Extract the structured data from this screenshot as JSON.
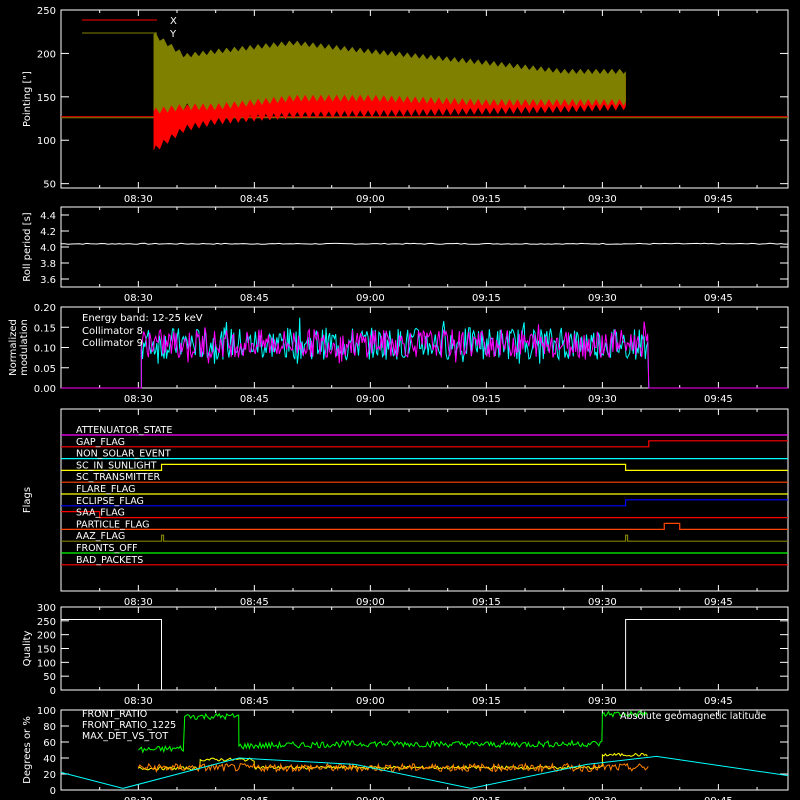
{
  "colors": {
    "bg": "#000000",
    "axis": "#ffffff",
    "red": "#ff0000",
    "olive": "#808000",
    "cyan": "#00ffff",
    "magenta": "#ff00ff",
    "green": "#00ff00",
    "orange": "#ff8000",
    "yellow": "#ffff00",
    "blue": "#0000ff",
    "orangered": "#ff4500",
    "lime": "#00ff40"
  },
  "chart_data": [
    {
      "type": "line",
      "ylabel": "Pointing [\"]",
      "ylim": [
        45,
        250
      ],
      "yticks": [
        "50",
        "100",
        "150",
        "200",
        "250"
      ],
      "xticks": [
        "08:30",
        "08:45",
        "09:00",
        "09:15",
        "09:30",
        "09:45"
      ],
      "legend": [
        "X",
        "Y"
      ],
      "series": [
        {
          "name": "X",
          "color": "#ff0000",
          "t": [
            "08:32",
            "08:36",
            "08:40",
            "08:45",
            "08:50",
            "09:00",
            "09:15",
            "09:25",
            "09:33"
          ],
          "min": [
            85,
            110,
            118,
            122,
            125,
            127,
            130,
            132,
            135
          ],
          "max": [
            150,
            140,
            150,
            162,
            164,
            160,
            160,
            175,
            175
          ]
        },
        {
          "name": "Y",
          "color": "#808000",
          "t": [
            "08:32",
            "08:36",
            "08:40",
            "08:45",
            "08:50",
            "09:00",
            "09:15",
            "09:25",
            "09:33"
          ],
          "min": [
            130,
            135,
            135,
            140,
            145,
            145,
            140,
            140,
            140
          ],
          "max": [
            225,
            200,
            205,
            210,
            215,
            205,
            192,
            182,
            182
          ]
        }
      ],
      "baseline": 127
    },
    {
      "type": "line",
      "ylabel": "Roll period [s]",
      "ylim": [
        3.5,
        4.5
      ],
      "yticks": [
        "3.6",
        "3.8",
        "4.0",
        "4.2",
        "4.4"
      ],
      "xticks": [
        "08:30",
        "08:45",
        "09:00",
        "09:15",
        "09:30",
        "09:45"
      ],
      "series": [
        {
          "name": "",
          "value": 4.04,
          "color": "#ffffff"
        }
      ]
    },
    {
      "type": "line",
      "ylabel": "Normalized modulation",
      "ylim": [
        0,
        0.2
      ],
      "yticks": [
        "0.00",
        "0.05",
        "0.10",
        "0.15",
        "0.20"
      ],
      "xticks": [
        "08:30",
        "08:45",
        "09:00",
        "09:15",
        "09:30",
        "09:45"
      ],
      "annotation": "Energy band: 12-25 keV",
      "series": [
        {
          "name": "Collimator 8",
          "color": "#00ffff",
          "mean": 0.11,
          "spread": 0.04
        },
        {
          "name": "Collimator 9",
          "color": "#ff00ff",
          "mean": 0.11,
          "spread": 0.035
        }
      ],
      "active_range": [
        "08:30",
        "09:36"
      ]
    },
    {
      "type": "line",
      "ylabel": "Flags",
      "flags": [
        {
          "name": "ATTENUATOR_STATE",
          "color": "#ff00ff",
          "steps": []
        },
        {
          "name": "GAP_FLAG",
          "color": "#ff0000",
          "steps": [
            [
              "09:36",
              1
            ]
          ]
        },
        {
          "name": "NON_SOLAR_EVENT",
          "color": "#00ffff",
          "steps": []
        },
        {
          "name": "SC_IN_SUNLIGHT",
          "color": "#ffff00",
          "steps": [
            [
              "08:33",
              1
            ],
            [
              "09:33",
              0
            ]
          ]
        },
        {
          "name": "SC_TRANSMITTER",
          "color": "#ff4500",
          "steps": []
        },
        {
          "name": "FLARE_FLAG",
          "color": "#ffff00",
          "steps": []
        },
        {
          "name": "ECLIPSE_FLAG",
          "color": "#0000ff",
          "steps": [
            [
              "08:33",
              0
            ],
            [
              "09:33",
              1
            ]
          ]
        },
        {
          "name": "SAA_FLAG",
          "color": "#ff0000",
          "steps": [
            [
              "08:25",
              0
            ]
          ],
          "initial": 1
        },
        {
          "name": "PARTICLE_FLAG",
          "color": "#ff4500",
          "steps": [
            [
              "09:38",
              1
            ],
            [
              "09:40",
              0
            ]
          ]
        },
        {
          "name": "AAZ_FLAG",
          "color": "#808000",
          "spikes": [
            "08:33",
            "09:33"
          ]
        },
        {
          "name": "FRONTS_OFF",
          "color": "#00ff00",
          "steps": []
        },
        {
          "name": "BAD_PACKETS",
          "color": "#ff0000",
          "steps": []
        }
      ]
    },
    {
      "type": "line",
      "ylabel": "Quality",
      "ylim": [
        0,
        300
      ],
      "yticks": [
        "0",
        "50",
        "100",
        "150",
        "200",
        "250",
        "300"
      ],
      "xticks": [
        "08:30",
        "08:45",
        "09:00",
        "09:15",
        "09:30",
        "09:45"
      ],
      "series": [
        {
          "name": "",
          "color": "#ffffff",
          "points": [
            [
              "08:20",
              255
            ],
            [
              "08:33",
              255
            ],
            [
              "08:33",
              0
            ],
            [
              "09:33",
              0
            ],
            [
              "09:33",
              255
            ],
            [
              "09:54",
              255
            ]
          ]
        }
      ]
    },
    {
      "type": "line",
      "ylabel": "Degrees or %",
      "ylim": [
        0,
        100
      ],
      "yticks": [
        "0",
        "20",
        "40",
        "60",
        "80",
        "100"
      ],
      "xticks": [
        "08:30",
        "08:45",
        "09:00",
        "09:15",
        "09:30",
        "09:45"
      ],
      "legend_right": "Absolute geomagnetic latitude",
      "series": [
        {
          "name": "FRONT_RATIO",
          "color": "#ffff00",
          "points": [
            [
              "08:30",
              27
            ],
            [
              "08:38",
              27
            ],
            [
              "08:38",
              38
            ],
            [
              "08:45",
              38
            ],
            [
              "08:45",
              28
            ],
            [
              "09:30",
              28
            ],
            [
              "09:30",
              44
            ],
            [
              "09:36",
              44
            ]
          ]
        },
        {
          "name": "FRONT_RATIO_1225",
          "color": "#00ff00",
          "points": [
            [
              "08:30",
              50
            ],
            [
              "08:36",
              52
            ],
            [
              "08:36",
              92
            ],
            [
              "08:43",
              92
            ],
            [
              "08:43",
              55
            ],
            [
              "09:00",
              58
            ],
            [
              "09:15",
              57
            ],
            [
              "09:30",
              58
            ],
            [
              "09:30",
              95
            ],
            [
              "09:36",
              95
            ]
          ]
        },
        {
          "name": "MAX_DET_VS_TOT",
          "color": "#ff8000",
          "points": [
            [
              "08:30",
              28
            ],
            [
              "09:36",
              28
            ]
          ]
        },
        {
          "name": "Absolute geomagnetic latitude",
          "color": "#00ffff",
          "points": [
            [
              "08:20",
              22
            ],
            [
              "08:28",
              2
            ],
            [
              "08:43",
              40
            ],
            [
              "08:58",
              32
            ],
            [
              "09:13",
              2
            ],
            [
              "09:28",
              32
            ],
            [
              "09:37",
              42
            ],
            [
              "09:54",
              18
            ]
          ]
        }
      ]
    }
  ]
}
